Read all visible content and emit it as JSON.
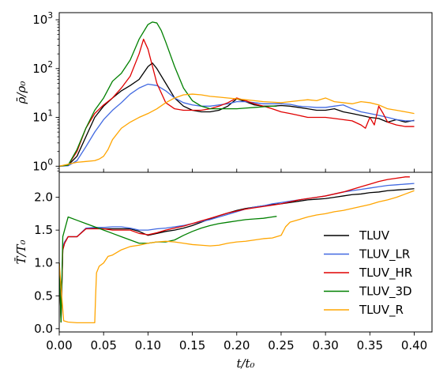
{
  "chart_data": {
    "type": "line",
    "xlabel": "t/t₀",
    "xlim": [
      0.0,
      0.42
    ],
    "xticks": [
      "0.00",
      "0.05",
      "0.10",
      "0.15",
      "0.20",
      "0.25",
      "0.30",
      "0.35",
      "0.40"
    ],
    "xtick_values": [
      0.0,
      0.05,
      0.1,
      0.15,
      0.2,
      0.25,
      0.3,
      0.35,
      0.4
    ],
    "legend": {
      "placement": "lower-right",
      "entries": [
        "TLUV",
        "TLUV_LR",
        "TLUV_HR",
        "TLUV_3D",
        "TLUV_R"
      ]
    },
    "colors": {
      "TLUV": "#000000",
      "TLUV_LR": "#4169e1",
      "TLUV_HR": "#e00000",
      "TLUV_3D": "#008000",
      "TLUV_R": "#ffa500"
    },
    "panels": [
      {
        "name": "density",
        "ylabel": "ρ̄/ρ₀",
        "yscale": "log",
        "ylim": [
          0.75,
          1400
        ],
        "yticks": [
          {
            "value": 1,
            "base": "10",
            "exp": "0"
          },
          {
            "value": 10,
            "base": "10",
            "exp": "1"
          },
          {
            "value": 100,
            "base": "10",
            "exp": "2"
          },
          {
            "value": 1000,
            "base": "10",
            "exp": "3"
          }
        ],
        "series": [
          {
            "name": "TLUV",
            "x": [
              0,
              0.01,
              0.02,
              0.03,
              0.04,
              0.05,
              0.06,
              0.07,
              0.08,
              0.09,
              0.1,
              0.105,
              0.11,
              0.12,
              0.13,
              0.14,
              0.15,
              0.16,
              0.17,
              0.18,
              0.19,
              0.2,
              0.21,
              0.22,
              0.23,
              0.24,
              0.25,
              0.26,
              0.27,
              0.28,
              0.29,
              0.3,
              0.31,
              0.32,
              0.33,
              0.34,
              0.35,
              0.36,
              0.37,
              0.38,
              0.39,
              0.4
            ],
            "y": [
              1.0,
              1.05,
              1.6,
              4,
              10,
              17,
              25,
              35,
              45,
              60,
              110,
              130,
              100,
              50,
              25,
              17,
              14,
              13,
              13,
              14,
              17,
              24,
              21,
              18,
              17,
              17,
              17.5,
              17,
              16,
              15,
              14,
              14,
              15,
              13,
              12,
              11,
              10,
              9.5,
              8,
              9,
              8,
              8.7
            ]
          },
          {
            "name": "TLUV_LR",
            "x": [
              0,
              0.01,
              0.02,
              0.03,
              0.04,
              0.05,
              0.06,
              0.07,
              0.08,
              0.09,
              0.1,
              0.11,
              0.12,
              0.13,
              0.14,
              0.15,
              0.16,
              0.17,
              0.18,
              0.19,
              0.2,
              0.21,
              0.22,
              0.23,
              0.24,
              0.25,
              0.26,
              0.27,
              0.28,
              0.29,
              0.3,
              0.31,
              0.32,
              0.33,
              0.34,
              0.35,
              0.36,
              0.37,
              0.38,
              0.39,
              0.4
            ],
            "y": [
              1.0,
              1.02,
              1.3,
              2.5,
              5,
              9,
              14,
              20,
              30,
              40,
              48,
              45,
              35,
              25,
              20,
              18,
              17,
              17,
              18,
              19,
              21,
              21,
              20,
              19,
              19,
              19,
              18.5,
              17,
              16.5,
              16,
              16,
              17,
              18,
              15,
              13,
              12,
              11,
              10,
              9,
              8.5,
              8.5
            ]
          },
          {
            "name": "TLUV_HR",
            "x": [
              0,
              0.01,
              0.02,
              0.03,
              0.04,
              0.05,
              0.06,
              0.07,
              0.08,
              0.09,
              0.095,
              0.1,
              0.11,
              0.12,
              0.13,
              0.14,
              0.15,
              0.16,
              0.17,
              0.18,
              0.19,
              0.2,
              0.21,
              0.22,
              0.23,
              0.24,
              0.25,
              0.26,
              0.27,
              0.28,
              0.29,
              0.3,
              0.31,
              0.32,
              0.33,
              0.34,
              0.345,
              0.35,
              0.355,
              0.36,
              0.365,
              0.37,
              0.38,
              0.39,
              0.4
            ],
            "y": [
              1.0,
              1.05,
              2,
              6,
              12,
              18,
              25,
              40,
              70,
              200,
              400,
              250,
              50,
              20,
              15,
              14,
              14,
              14,
              15,
              17,
              20,
              25,
              22,
              19,
              17,
              15,
              13,
              12,
              11,
              10,
              10,
              10,
              9.5,
              9,
              8.5,
              7,
              6,
              10,
              7,
              17,
              12,
              8,
              7,
              6.5,
              6.5
            ]
          },
          {
            "name": "TLUV_3D",
            "x": [
              0,
              0.01,
              0.02,
              0.03,
              0.04,
              0.05,
              0.06,
              0.07,
              0.08,
              0.09,
              0.1,
              0.105,
              0.11,
              0.115,
              0.12,
              0.13,
              0.14,
              0.15,
              0.16,
              0.17,
              0.18,
              0.19,
              0.2,
              0.21,
              0.22,
              0.23,
              0.24,
              0.245
            ],
            "y": [
              1.0,
              1.05,
              2.2,
              6,
              14,
              25,
              55,
              80,
              150,
              400,
              800,
              900,
              860,
              600,
              350,
              110,
              40,
              22,
              17,
              15,
              15,
              15,
              15,
              15.5,
              16,
              16.5,
              17,
              17
            ]
          },
          {
            "name": "TLUV_R",
            "x": [
              0,
              0.01,
              0.02,
              0.03,
              0.04,
              0.045,
              0.05,
              0.055,
              0.06,
              0.07,
              0.08,
              0.09,
              0.1,
              0.11,
              0.12,
              0.13,
              0.14,
              0.15,
              0.16,
              0.17,
              0.18,
              0.19,
              0.2,
              0.21,
              0.22,
              0.23,
              0.24,
              0.25,
              0.26,
              0.27,
              0.28,
              0.29,
              0.3,
              0.31,
              0.32,
              0.33,
              0.34,
              0.35,
              0.36,
              0.37,
              0.38,
              0.39,
              0.4
            ],
            "y": [
              1.0,
              1.1,
              1.2,
              1.25,
              1.3,
              1.4,
              1.6,
              2.2,
              3.5,
              6,
              8,
              10,
              12,
              15,
              20,
              25,
              29,
              30,
              29,
              27,
              26,
              25,
              24,
              23,
              22,
              21,
              20.5,
              20,
              21,
              22,
              23,
              22,
              25,
              21,
              20,
              19,
              21,
              20,
              18,
              15,
              14,
              13,
              12
            ]
          }
        ]
      },
      {
        "name": "temperature",
        "ylabel": "T̄/T₀",
        "yscale": "linear",
        "ylim": [
          -0.05,
          2.38
        ],
        "yticks": [
          {
            "value": 0.0,
            "label": "0.0"
          },
          {
            "value": 0.5,
            "label": "0.5"
          },
          {
            "value": 1.0,
            "label": "1.0"
          },
          {
            "value": 1.5,
            "label": "1.5"
          },
          {
            "value": 2.0,
            "label": "2.0"
          }
        ],
        "series": [
          {
            "name": "TLUV",
            "x": [
              0,
              0.002,
              0.004,
              0.006,
              0.01,
              0.02,
              0.03,
              0.04,
              0.05,
              0.06,
              0.07,
              0.08,
              0.09,
              0.1,
              0.11,
              0.12,
              0.13,
              0.14,
              0.15,
              0.16,
              0.17,
              0.18,
              0.19,
              0.2,
              0.21,
              0.22,
              0.23,
              0.24,
              0.25,
              0.26,
              0.27,
              0.28,
              0.29,
              0.3,
              0.31,
              0.32,
              0.33,
              0.34,
              0.35,
              0.36,
              0.37,
              0.38,
              0.39,
              0.4
            ],
            "y": [
              1.0,
              0.15,
              1.2,
              1.3,
              1.4,
              1.4,
              1.52,
              1.53,
              1.52,
              1.52,
              1.52,
              1.52,
              1.48,
              1.42,
              1.45,
              1.48,
              1.5,
              1.53,
              1.57,
              1.62,
              1.67,
              1.72,
              1.76,
              1.8,
              1.83,
              1.85,
              1.87,
              1.89,
              1.9,
              1.92,
              1.94,
              1.96,
              1.97,
              1.98,
              2.0,
              2.02,
              2.04,
              2.05,
              2.07,
              2.08,
              2.1,
              2.11,
              2.12,
              2.13
            ]
          },
          {
            "name": "TLUV_LR",
            "x": [
              0,
              0.002,
              0.004,
              0.006,
              0.01,
              0.02,
              0.03,
              0.04,
              0.05,
              0.06,
              0.07,
              0.08,
              0.09,
              0.1,
              0.11,
              0.12,
              0.13,
              0.14,
              0.15,
              0.16,
              0.17,
              0.18,
              0.19,
              0.2,
              0.21,
              0.22,
              0.23,
              0.24,
              0.25,
              0.26,
              0.27,
              0.28,
              0.29,
              0.3,
              0.31,
              0.32,
              0.33,
              0.34,
              0.35,
              0.36,
              0.37,
              0.38,
              0.39,
              0.4
            ],
            "y": [
              1.0,
              0.12,
              1.25,
              1.32,
              1.4,
              1.4,
              1.53,
              1.54,
              1.54,
              1.55,
              1.55,
              1.53,
              1.5,
              1.5,
              1.52,
              1.53,
              1.55,
              1.57,
              1.6,
              1.63,
              1.66,
              1.7,
              1.74,
              1.78,
              1.82,
              1.85,
              1.87,
              1.9,
              1.92,
              1.94,
              1.96,
              1.98,
              2.0,
              2.02,
              2.05,
              2.08,
              2.1,
              2.12,
              2.14,
              2.16,
              2.18,
              2.19,
              2.2,
              2.21
            ]
          },
          {
            "name": "TLUV_HR",
            "x": [
              0,
              0.002,
              0.004,
              0.006,
              0.01,
              0.02,
              0.03,
              0.04,
              0.05,
              0.06,
              0.07,
              0.08,
              0.09,
              0.1,
              0.11,
              0.12,
              0.13,
              0.14,
              0.15,
              0.16,
              0.17,
              0.18,
              0.19,
              0.2,
              0.21,
              0.22,
              0.23,
              0.24,
              0.25,
              0.26,
              0.27,
              0.28,
              0.29,
              0.3,
              0.31,
              0.32,
              0.33,
              0.34,
              0.35,
              0.36,
              0.37,
              0.38,
              0.39,
              0.395
            ],
            "y": [
              1.0,
              0.1,
              1.2,
              1.3,
              1.4,
              1.4,
              1.52,
              1.52,
              1.52,
              1.5,
              1.5,
              1.5,
              1.45,
              1.43,
              1.46,
              1.5,
              1.53,
              1.56,
              1.6,
              1.64,
              1.68,
              1.72,
              1.76,
              1.79,
              1.82,
              1.84,
              1.86,
              1.88,
              1.9,
              1.93,
              1.96,
              1.98,
              2.0,
              2.02,
              2.05,
              2.08,
              2.12,
              2.16,
              2.2,
              2.24,
              2.27,
              2.29,
              2.31,
              2.31
            ]
          },
          {
            "name": "TLUV_3D",
            "x": [
              0,
              0.002,
              0.004,
              0.006,
              0.01,
              0.02,
              0.03,
              0.04,
              0.05,
              0.06,
              0.07,
              0.08,
              0.09,
              0.1,
              0.11,
              0.12,
              0.13,
              0.14,
              0.15,
              0.16,
              0.17,
              0.18,
              0.19,
              0.2,
              0.21,
              0.22,
              0.23,
              0.24,
              0.245
            ],
            "y": [
              1.0,
              0.1,
              1.4,
              1.5,
              1.7,
              1.65,
              1.6,
              1.55,
              1.5,
              1.45,
              1.4,
              1.35,
              1.3,
              1.3,
              1.32,
              1.32,
              1.35,
              1.42,
              1.48,
              1.53,
              1.57,
              1.6,
              1.62,
              1.64,
              1.66,
              1.67,
              1.68,
              1.7,
              1.71
            ]
          },
          {
            "name": "TLUV_R",
            "x": [
              0,
              0.005,
              0.01,
              0.02,
              0.03,
              0.04,
              0.041,
              0.042,
              0.045,
              0.05,
              0.055,
              0.06,
              0.07,
              0.08,
              0.09,
              0.1,
              0.11,
              0.12,
              0.13,
              0.14,
              0.15,
              0.16,
              0.17,
              0.18,
              0.19,
              0.2,
              0.21,
              0.22,
              0.23,
              0.24,
              0.25,
              0.255,
              0.26,
              0.27,
              0.28,
              0.29,
              0.3,
              0.31,
              0.32,
              0.33,
              0.34,
              0.35,
              0.36,
              0.37,
              0.38,
              0.39,
              0.4
            ],
            "y": [
              1.0,
              0.12,
              0.1,
              0.09,
              0.09,
              0.09,
              0.5,
              0.85,
              0.95,
              1.0,
              1.1,
              1.12,
              1.2,
              1.25,
              1.27,
              1.3,
              1.32,
              1.33,
              1.32,
              1.3,
              1.28,
              1.27,
              1.26,
              1.27,
              1.3,
              1.32,
              1.33,
              1.35,
              1.37,
              1.38,
              1.42,
              1.55,
              1.62,
              1.66,
              1.7,
              1.73,
              1.75,
              1.78,
              1.8,
              1.83,
              1.86,
              1.89,
              1.93,
              1.96,
              2.0,
              2.05,
              2.1
            ]
          }
        ]
      }
    ]
  }
}
